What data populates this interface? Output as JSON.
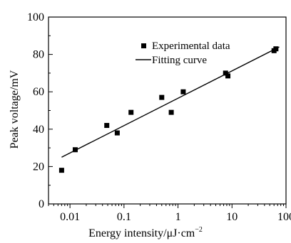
{
  "chart_data": {
    "type": "scatter",
    "title": "",
    "xlabel": "Energy intensity/μJ·cm",
    "xlabel_superscript": "−2",
    "ylabel": "Peak voltage/mV",
    "xscale": "log",
    "xlim": [
      0.004,
      100
    ],
    "ylim": [
      0,
      100
    ],
    "x_ticks": [
      0.01,
      0.1,
      1,
      10,
      100
    ],
    "x_tick_labels": [
      "0.01",
      "0.1",
      "1",
      "10",
      "100"
    ],
    "y_ticks": [
      0,
      20,
      40,
      60,
      80,
      100
    ],
    "y_tick_labels": [
      "0",
      "20",
      "40",
      "60",
      "80",
      "100"
    ],
    "grid": false,
    "legend": {
      "placement": "top-right",
      "entries": [
        "Experimental data",
        "Fitting curve"
      ]
    },
    "series": [
      {
        "name": "Experimental data",
        "kind": "scatter",
        "marker": "square",
        "color": "#000000",
        "points": [
          {
            "x": 0.007,
            "y": 18
          },
          {
            "x": 0.0125,
            "y": 29
          },
          {
            "x": 0.048,
            "y": 42
          },
          {
            "x": 0.075,
            "y": 38
          },
          {
            "x": 0.135,
            "y": 49
          },
          {
            "x": 0.5,
            "y": 57
          },
          {
            "x": 0.75,
            "y": 49
          },
          {
            "x": 1.25,
            "y": 60
          },
          {
            "x": 7.6,
            "y": 70
          },
          {
            "x": 8.4,
            "y": 68.5
          },
          {
            "x": 60,
            "y": 82
          },
          {
            "x": 65,
            "y": 83
          }
        ]
      },
      {
        "name": "Fitting curve",
        "kind": "line",
        "color": "#000000",
        "points": [
          {
            "x": 0.007,
            "y": 25
          },
          {
            "x": 75,
            "y": 84
          }
        ]
      }
    ]
  }
}
